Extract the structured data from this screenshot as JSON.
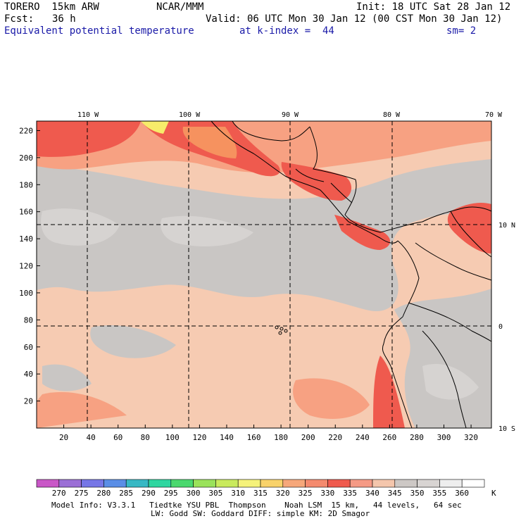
{
  "header": {
    "model": "TORERO  15km ARW",
    "org": "NCAR/MMM",
    "init": "Init: 18 UTC Sat 28 Jan 12",
    "fcst_label": "Fcst:",
    "fcst_value": "36 h",
    "valid": "Valid: 06 UTC Mon 30 Jan 12 (00 CST Mon 30 Jan 12)",
    "field": "Equivalent potential temperature",
    "level": "at k-index =  44",
    "smooth": "sm= 2"
  },
  "map": {
    "lon_labels": [
      "110 W",
      "100 W",
      "90 W",
      "80 W",
      "70 W"
    ],
    "lat_labels": [
      "10 N",
      "0",
      "10 S"
    ],
    "x_ticks": [
      "20",
      "40",
      "60",
      "80",
      "100",
      "120",
      "140",
      "160",
      "180",
      "200",
      "220",
      "240",
      "260",
      "280",
      "300",
      "320"
    ],
    "y_ticks": [
      "20",
      "40",
      "60",
      "80",
      "100",
      "120",
      "140",
      "160",
      "180",
      "200",
      "220"
    ],
    "colors": {
      "bg": "#f6cbb2",
      "gray": "#c9c6c4",
      "light_gray": "#d6d3d1",
      "warm": "#f7a182",
      "hot": "#ef5a4e",
      "orange": "#f6925f",
      "yellow": "#f7ec6a"
    }
  },
  "legend": {
    "values": [
      "270",
      "275",
      "280",
      "285",
      "290",
      "295",
      "300",
      "305",
      "310",
      "315",
      "320",
      "325",
      "330",
      "335",
      "340",
      "345",
      "350",
      "355",
      "360"
    ],
    "unit": "K",
    "colors": [
      "#c957c7",
      "#9b6fd6",
      "#7676e6",
      "#5a8ee6",
      "#37b8c4",
      "#2fd6a0",
      "#4ad86e",
      "#9ae25a",
      "#c9ea5c",
      "#f5f27a",
      "#f8d26a",
      "#f6a77a",
      "#f48a6e",
      "#ef5a4e",
      "#f59a85",
      "#f4c6ac",
      "#cdc8c5",
      "#d8d4d2",
      "#eeeeee",
      "#ffffff"
    ]
  },
  "footer": {
    "line1": "Model Info: V3.3.1   Tiedtke YSU PBL  Thompson    Noah LSM  15 km,   44 levels,   64 sec",
    "line2": "LW: Godd SW: Goddard DIFF: simple KM: 2D Smagor"
  }
}
